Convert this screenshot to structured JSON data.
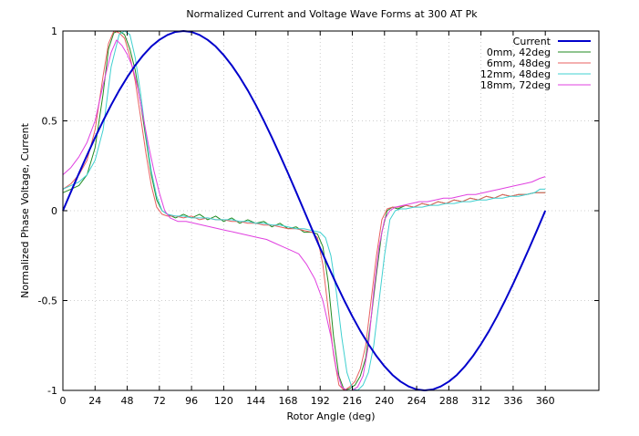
{
  "chart_data": {
    "type": "line",
    "title": "Normalized Current and Voltage Wave Forms at 300 AT Pk",
    "xlabel": "Rotor Angle (deg)",
    "ylabel": "Normalized Phase Voltage, Current",
    "xlim": [
      0,
      400
    ],
    "ylim": [
      -1,
      1
    ],
    "xticks": [
      0,
      24,
      48,
      72,
      96,
      120,
      144,
      168,
      192,
      216,
      240,
      264,
      288,
      312,
      336,
      360
    ],
    "yticks": [
      -1,
      -0.5,
      0,
      0.5,
      1
    ],
    "ytick_labels": [
      "-1",
      "-0.5",
      "0",
      "0.5",
      "1"
    ],
    "grid": true,
    "legend_position": "top-right",
    "series": [
      {
        "name": "Current",
        "color": "#0000cc",
        "x": [
          0,
          6,
          12,
          18,
          24,
          30,
          36,
          42,
          48,
          54,
          60,
          66,
          72,
          78,
          84,
          90,
          96,
          102,
          108,
          114,
          120,
          126,
          132,
          138,
          144,
          150,
          156,
          162,
          168,
          174,
          180,
          186,
          192,
          198,
          204,
          210,
          216,
          222,
          228,
          234,
          240,
          246,
          252,
          258,
          264,
          270,
          276,
          282,
          288,
          294,
          300,
          306,
          312,
          318,
          324,
          330,
          336,
          342,
          348,
          354,
          360
        ],
        "y": [
          0,
          0.105,
          0.208,
          0.309,
          0.407,
          0.5,
          0.588,
          0.669,
          0.743,
          0.809,
          0.866,
          0.914,
          0.951,
          0.978,
          0.995,
          1,
          0.995,
          0.978,
          0.951,
          0.914,
          0.866,
          0.809,
          0.743,
          0.669,
          0.588,
          0.5,
          0.407,
          0.309,
          0.208,
          0.105,
          0,
          -0.105,
          -0.208,
          -0.309,
          -0.407,
          -0.5,
          -0.588,
          -0.669,
          -0.743,
          -0.809,
          -0.866,
          -0.914,
          -0.951,
          -0.978,
          -0.995,
          -1,
          -0.995,
          -0.978,
          -0.951,
          -0.914,
          -0.866,
          -0.809,
          -0.743,
          -0.669,
          -0.588,
          -0.5,
          -0.407,
          -0.309,
          -0.208,
          -0.105,
          0
        ]
      },
      {
        "name": "0mm, 42deg",
        "color": "#228b22",
        "x": [
          0,
          6,
          12,
          18,
          24,
          30,
          34,
          38,
          42,
          46,
          50,
          54,
          58,
          62,
          66,
          70,
          74,
          78,
          84,
          90,
          96,
          102,
          108,
          114,
          120,
          126,
          132,
          138,
          144,
          150,
          156,
          162,
          168,
          174,
          180,
          186,
          190,
          194,
          198,
          202,
          206,
          210,
          214,
          218,
          222,
          226,
          230,
          234,
          238,
          242,
          246,
          250,
          256,
          262,
          268,
          274,
          280,
          286,
          292,
          298,
          304,
          310,
          316,
          322,
          328,
          334,
          340,
          346,
          352,
          356,
          360
        ],
        "y": [
          0.1,
          0.12,
          0.14,
          0.2,
          0.35,
          0.65,
          0.9,
          0.99,
          1.0,
          0.98,
          0.9,
          0.78,
          0.6,
          0.4,
          0.2,
          0.06,
          0.0,
          -0.02,
          -0.04,
          -0.02,
          -0.04,
          -0.02,
          -0.05,
          -0.03,
          -0.06,
          -0.04,
          -0.07,
          -0.05,
          -0.07,
          -0.06,
          -0.09,
          -0.07,
          -0.1,
          -0.09,
          -0.12,
          -0.12,
          -0.13,
          -0.2,
          -0.4,
          -0.7,
          -0.92,
          -1.0,
          -0.99,
          -0.97,
          -0.92,
          -0.82,
          -0.6,
          -0.35,
          -0.12,
          0.0,
          0.02,
          0.01,
          0.03,
          0.02,
          0.04,
          0.03,
          0.05,
          0.04,
          0.06,
          0.05,
          0.07,
          0.06,
          0.08,
          0.07,
          0.09,
          0.08,
          0.09,
          0.09,
          0.1,
          0.1,
          0.1
        ]
      },
      {
        "name": "6mm, 48deg",
        "color": "#e86060",
        "x": [
          0,
          6,
          12,
          18,
          24,
          30,
          34,
          38,
          42,
          46,
          50,
          54,
          58,
          62,
          66,
          70,
          74,
          78,
          84,
          90,
          96,
          102,
          108,
          114,
          120,
          126,
          132,
          138,
          144,
          150,
          156,
          162,
          168,
          174,
          180,
          186,
          190,
          194,
          198,
          202,
          206,
          210,
          214,
          218,
          222,
          226,
          230,
          234,
          238,
          242,
          246,
          250,
          256,
          262,
          268,
          274,
          280,
          286,
          292,
          298,
          304,
          310,
          316,
          322,
          328,
          334,
          340,
          346,
          352,
          356,
          360
        ],
        "y": [
          0.12,
          0.15,
          0.2,
          0.28,
          0.45,
          0.75,
          0.93,
          1.0,
          0.99,
          0.96,
          0.86,
          0.72,
          0.52,
          0.32,
          0.14,
          0.02,
          -0.02,
          -0.03,
          -0.03,
          -0.04,
          -0.03,
          -0.05,
          -0.04,
          -0.05,
          -0.05,
          -0.06,
          -0.06,
          -0.07,
          -0.07,
          -0.08,
          -0.08,
          -0.09,
          -0.1,
          -0.1,
          -0.11,
          -0.12,
          -0.15,
          -0.3,
          -0.55,
          -0.8,
          -0.97,
          -1.0,
          -0.98,
          -0.95,
          -0.88,
          -0.75,
          -0.5,
          -0.25,
          -0.05,
          0.01,
          0.02,
          0.02,
          0.03,
          0.02,
          0.04,
          0.03,
          0.05,
          0.04,
          0.06,
          0.05,
          0.07,
          0.06,
          0.08,
          0.07,
          0.09,
          0.08,
          0.09,
          0.09,
          0.1,
          0.1,
          0.1
        ]
      },
      {
        "name": "12mm, 48deg",
        "color": "#40d0d0",
        "x": [
          0,
          6,
          12,
          18,
          24,
          30,
          36,
          42,
          46,
          50,
          54,
          58,
          62,
          66,
          70,
          74,
          78,
          84,
          90,
          96,
          102,
          108,
          114,
          120,
          126,
          132,
          138,
          144,
          150,
          156,
          162,
          168,
          174,
          180,
          186,
          192,
          196,
          200,
          204,
          208,
          212,
          216,
          220,
          224,
          228,
          232,
          236,
          240,
          244,
          248,
          252,
          256,
          262,
          268,
          274,
          280,
          286,
          292,
          298,
          304,
          310,
          316,
          322,
          328,
          334,
          340,
          346,
          352,
          356,
          360
        ],
        "y": [
          0.12,
          0.14,
          0.16,
          0.2,
          0.28,
          0.45,
          0.8,
          0.98,
          1.0,
          0.98,
          0.85,
          0.65,
          0.42,
          0.22,
          0.08,
          0.0,
          -0.02,
          -0.03,
          -0.03,
          -0.04,
          -0.04,
          -0.04,
          -0.05,
          -0.05,
          -0.05,
          -0.06,
          -0.06,
          -0.07,
          -0.07,
          -0.08,
          -0.08,
          -0.09,
          -0.1,
          -0.1,
          -0.11,
          -0.12,
          -0.15,
          -0.25,
          -0.45,
          -0.7,
          -0.9,
          -0.99,
          -1.0,
          -0.97,
          -0.9,
          -0.75,
          -0.5,
          -0.25,
          -0.05,
          0.0,
          0.01,
          0.01,
          0.02,
          0.02,
          0.03,
          0.03,
          0.04,
          0.04,
          0.05,
          0.05,
          0.06,
          0.06,
          0.07,
          0.07,
          0.08,
          0.08,
          0.09,
          0.1,
          0.12,
          0.12
        ]
      },
      {
        "name": "18mm, 72deg",
        "color": "#e040e0",
        "x": [
          0,
          6,
          12,
          18,
          24,
          30,
          36,
          40,
          44,
          48,
          52,
          56,
          60,
          64,
          68,
          72,
          76,
          80,
          86,
          92,
          98,
          104,
          110,
          116,
          122,
          128,
          134,
          140,
          146,
          152,
          158,
          164,
          170,
          176,
          182,
          188,
          194,
          200,
          204,
          208,
          212,
          216,
          220,
          224,
          228,
          232,
          236,
          240,
          244,
          248,
          254,
          260,
          266,
          272,
          278,
          284,
          290,
          296,
          302,
          308,
          314,
          320,
          326,
          332,
          338,
          344,
          350,
          356,
          360
        ],
        "y": [
          0.2,
          0.24,
          0.3,
          0.38,
          0.5,
          0.7,
          0.88,
          0.95,
          0.92,
          0.87,
          0.8,
          0.68,
          0.52,
          0.36,
          0.22,
          0.1,
          0.0,
          -0.04,
          -0.06,
          -0.06,
          -0.07,
          -0.08,
          -0.09,
          -0.1,
          -0.11,
          -0.12,
          -0.13,
          -0.14,
          -0.15,
          -0.16,
          -0.18,
          -0.2,
          -0.22,
          -0.24,
          -0.3,
          -0.38,
          -0.5,
          -0.7,
          -0.88,
          -0.98,
          -1.0,
          -1.0,
          -0.98,
          -0.92,
          -0.75,
          -0.45,
          -0.2,
          -0.05,
          0.0,
          0.02,
          0.03,
          0.04,
          0.05,
          0.05,
          0.06,
          0.07,
          0.07,
          0.08,
          0.09,
          0.09,
          0.1,
          0.11,
          0.12,
          0.13,
          0.14,
          0.15,
          0.16,
          0.18,
          0.19
        ]
      }
    ]
  }
}
